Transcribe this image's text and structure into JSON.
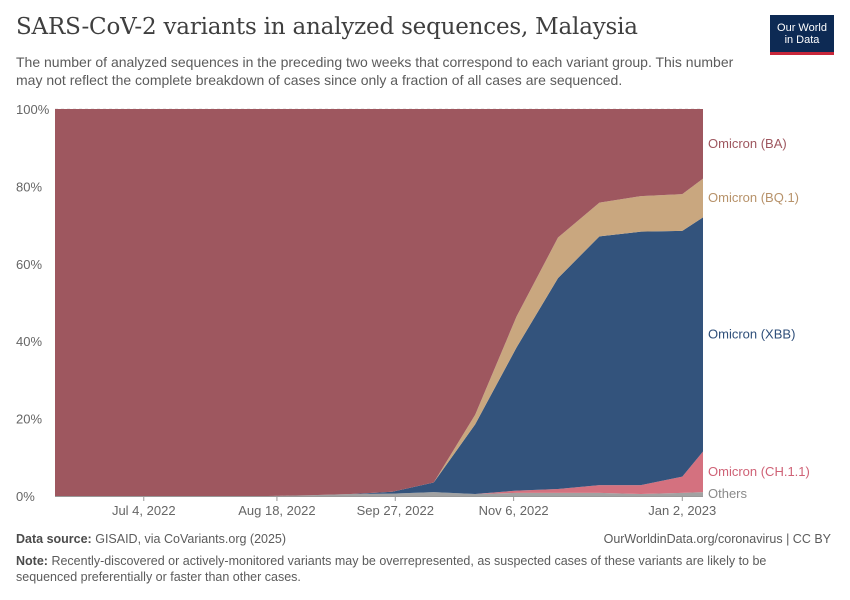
{
  "header": {
    "title": "SARS-CoV-2 variants in analyzed sequences, Malaysia",
    "subtitle": "The number of analyzed sequences in the preceding two weeks that correspond to each variant group. This number may not reflect the complete breakdown of cases since only a fraction of all cases are sequenced."
  },
  "logo": {
    "line1": "Our World",
    "line2": "in Data",
    "bg_color": "#0d2a54",
    "accent_color": "#c8273a"
  },
  "chart_data": {
    "type": "area",
    "stacked": true,
    "percent": true,
    "ylim": [
      0,
      100
    ],
    "y_ticks": [
      "0%",
      "20%",
      "40%",
      "60%",
      "80%",
      "100%"
    ],
    "grid": "horizontal dashed",
    "x_ticks": [
      {
        "label": "Jul 4, 2022",
        "day": "2022-07-04"
      },
      {
        "label": "Aug 18, 2022",
        "day": "2022-08-18"
      },
      {
        "label": "Sep 27, 2022",
        "day": "2022-09-27"
      },
      {
        "label": "Nov 6, 2022",
        "day": "2022-11-06"
      },
      {
        "label": "Jan 2, 2023",
        "day": "2023-01-02"
      }
    ],
    "x": [
      "2022-06-04",
      "2022-06-20",
      "2022-07-04",
      "2022-07-18",
      "2022-08-01",
      "2022-08-15",
      "2022-08-29",
      "2022-09-12",
      "2022-09-26",
      "2022-10-10",
      "2022-10-24",
      "2022-11-07",
      "2022-11-21",
      "2022-12-05",
      "2022-12-19",
      "2023-01-02",
      "2023-01-09"
    ],
    "series": [
      {
        "name": "Others",
        "color": "#a2a2a2",
        "values": [
          0,
          0,
          0,
          0,
          0,
          0,
          0.2,
          0.5,
          0.6,
          1.0,
          0.5,
          0.8,
          0.8,
          0.8,
          0.5,
          0.8,
          1.0
        ]
      },
      {
        "name": "Omicron (CH.1.1)",
        "color": "#d4717f",
        "values": [
          0,
          0,
          0,
          0,
          0,
          0,
          0,
          0,
          0,
          0,
          0,
          0.6,
          1.0,
          2.0,
          2.3,
          4.2,
          10.5
        ]
      },
      {
        "name": "Omicron (XBB)",
        "color": "#33537c",
        "values": [
          0,
          0,
          0,
          0,
          0,
          0,
          0,
          0,
          0.5,
          2.5,
          18.0,
          37.0,
          54.5,
          64.3,
          65.5,
          63.5,
          60.5
        ]
      },
      {
        "name": "Omicron (BQ.1)",
        "color": "#c9a77f",
        "values": [
          0,
          0,
          0,
          0,
          0,
          0,
          0,
          0,
          0,
          0,
          2.5,
          8.0,
          10.5,
          8.7,
          9.2,
          9.5,
          10.0
        ]
      },
      {
        "name": "Omicron (BA)",
        "color": "#9e575f",
        "values": [
          100,
          100,
          100,
          100,
          100,
          100,
          99.8,
          99.5,
          98.9,
          96.5,
          79.0,
          53.6,
          33.2,
          24.2,
          22.5,
          22.0,
          18.0
        ]
      }
    ],
    "labels": [
      {
        "name": "Omicron (BA)",
        "text": "Omicron (BA)",
        "color": "#9e575f"
      },
      {
        "name": "Omicron (BQ.1)",
        "text": "Omicron (BQ.1)",
        "color": "#b7926a"
      },
      {
        "name": "Omicron (XBB)",
        "text": "Omicron (XBB)",
        "color": "#2f4f7a"
      },
      {
        "name": "Omicron (CH.1.1)",
        "text": "Omicron (CH.1.1)",
        "color": "#cf6276"
      },
      {
        "name": "Others",
        "text": "Others",
        "color": "#8a8a8a"
      }
    ]
  },
  "footer": {
    "source_label": "Data source:",
    "source_text": "GISAID, via CoVariants.org (2025)",
    "url_text": "OurWorldinData.org/coronavirus | CC BY",
    "note_label": "Note:",
    "note_text": "Recently-discovered or actively-monitored variants may be overrepresented, as suspected cases of these variants are likely to be sequenced preferentially or faster than other cases."
  }
}
